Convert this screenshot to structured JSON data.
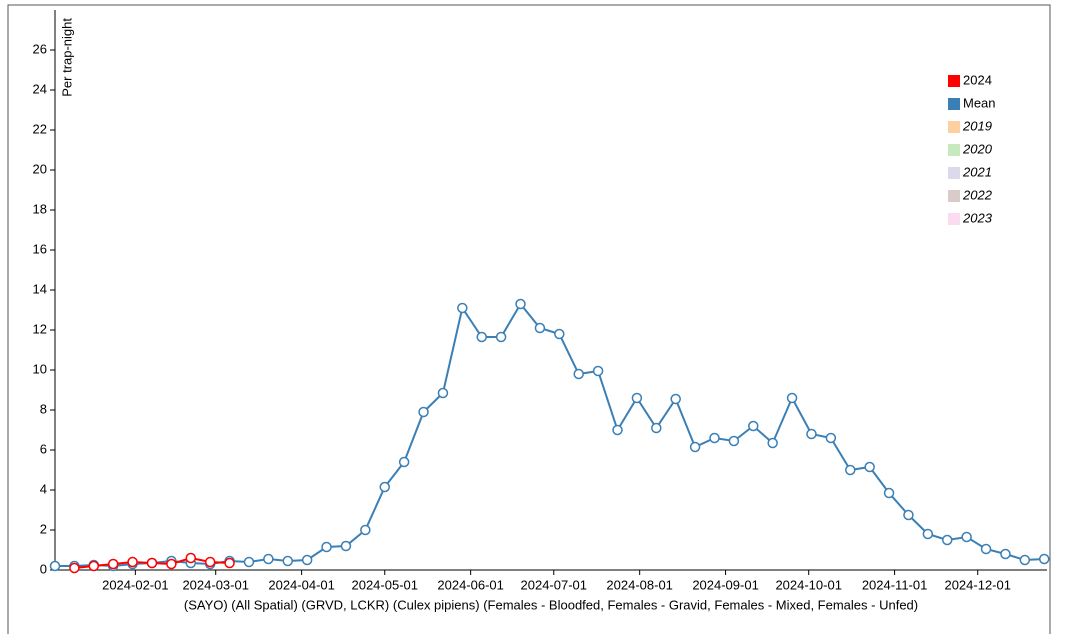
{
  "chart_data": {
    "type": "line",
    "y_label": "Per trap-night",
    "x_label": "(SAYO) (All Spatial) (GRVD, LCKR) (Culex pipiens) (Females - Bloodfed, Females - Gravid, Females - Mixed, Females - Unfed)",
    "x": [
      "2024-01-03",
      "2024-01-10",
      "2024-01-17",
      "2024-01-24",
      "2024-01-31",
      "2024-02-07",
      "2024-02-14",
      "2024-02-21",
      "2024-02-28",
      "2024-03-06",
      "2024-03-13",
      "2024-03-20",
      "2024-03-27",
      "2024-04-03",
      "2024-04-10",
      "2024-04-17",
      "2024-04-24",
      "2024-05-01",
      "2024-05-08",
      "2024-05-15",
      "2024-05-22",
      "2024-05-29",
      "2024-06-05",
      "2024-06-12",
      "2024-06-19",
      "2024-06-26",
      "2024-07-03",
      "2024-07-10",
      "2024-07-17",
      "2024-07-24",
      "2024-07-31",
      "2024-08-07",
      "2024-08-14",
      "2024-08-21",
      "2024-08-28",
      "2024-09-04",
      "2024-09-11",
      "2024-09-18",
      "2024-09-25",
      "2024-10-02",
      "2024-10-09",
      "2024-10-16",
      "2024-10-23",
      "2024-10-30",
      "2024-11-06",
      "2024-11-13",
      "2024-11-20",
      "2024-11-27",
      "2024-12-04",
      "2024-12-11",
      "2024-12-18",
      "2024-12-25"
    ],
    "series": [
      {
        "name": "2024",
        "color": "#ff0000",
        "values": [
          null,
          0.1,
          0.2,
          0.3,
          0.4,
          0.35,
          0.3,
          0.6,
          0.4,
          0.35,
          null,
          null,
          null,
          null,
          null,
          null,
          null,
          null,
          null,
          null,
          null,
          null,
          null,
          null,
          null,
          null,
          null,
          null,
          null,
          null,
          null,
          null,
          null,
          null,
          null,
          null,
          null,
          null,
          null,
          null,
          null,
          null,
          null,
          null,
          null,
          null,
          null,
          null,
          null,
          null,
          null,
          null
        ]
      },
      {
        "name": "Mean",
        "color": "#3a7fb5",
        "values": [
          0.2,
          0.2,
          0.25,
          0.2,
          0.3,
          0.35,
          0.45,
          0.35,
          0.3,
          0.45,
          0.4,
          0.55,
          0.45,
          0.5,
          1.15,
          1.2,
          2.0,
          4.15,
          5.4,
          7.9,
          8.85,
          13.1,
          11.65,
          11.65,
          13.3,
          12.1,
          11.8,
          9.8,
          9.95,
          7.0,
          8.6,
          7.1,
          8.55,
          6.15,
          6.6,
          6.45,
          7.2,
          6.35,
          8.6,
          6.8,
          6.6,
          5.0,
          5.15,
          3.85,
          2.75,
          1.8,
          1.5,
          1.65,
          1.05,
          0.8,
          0.5,
          0.55
        ]
      },
      {
        "name": "2019",
        "color": "#fdd0a2",
        "values": [
          null,
          null,
          null,
          null,
          null,
          null,
          null,
          null,
          null,
          null,
          null,
          null,
          null,
          null,
          null,
          null,
          null,
          null,
          null,
          null,
          null,
          null,
          null,
          null,
          null,
          null,
          null,
          null,
          null,
          null,
          null,
          null,
          null,
          null,
          null,
          null,
          null,
          null,
          null,
          null,
          null,
          null,
          null,
          null,
          null,
          null,
          null,
          null,
          null,
          null,
          null,
          null
        ]
      },
      {
        "name": "2020",
        "color": "#c7e9c0",
        "values": [
          null,
          null,
          null,
          null,
          null,
          null,
          null,
          null,
          null,
          null,
          null,
          null,
          null,
          null,
          null,
          null,
          null,
          null,
          null,
          null,
          null,
          null,
          null,
          null,
          null,
          null,
          null,
          null,
          null,
          null,
          null,
          null,
          null,
          null,
          null,
          null,
          null,
          null,
          null,
          null,
          null,
          null,
          null,
          null,
          null,
          null,
          null,
          null,
          null,
          null,
          null,
          null
        ]
      },
      {
        "name": "2021",
        "color": "#dadaeb",
        "values": [
          null,
          null,
          null,
          null,
          null,
          null,
          null,
          null,
          null,
          null,
          null,
          null,
          null,
          null,
          null,
          null,
          null,
          null,
          null,
          null,
          null,
          null,
          null,
          null,
          null,
          null,
          null,
          null,
          null,
          null,
          null,
          null,
          null,
          null,
          null,
          null,
          null,
          null,
          null,
          null,
          null,
          null,
          null,
          null,
          null,
          null,
          null,
          null,
          null,
          null,
          null,
          null
        ]
      },
      {
        "name": "2022",
        "color": "#d9ccc8",
        "values": [
          null,
          null,
          null,
          null,
          null,
          null,
          null,
          null,
          null,
          null,
          null,
          null,
          null,
          null,
          null,
          null,
          null,
          null,
          null,
          null,
          null,
          null,
          null,
          null,
          null,
          null,
          null,
          null,
          null,
          null,
          null,
          null,
          null,
          null,
          null,
          null,
          null,
          null,
          null,
          null,
          null,
          null,
          null,
          null,
          null,
          null,
          null,
          null,
          null,
          null,
          null,
          null
        ]
      },
      {
        "name": "2023",
        "color": "#fadcf0",
        "values": [
          null,
          null,
          null,
          null,
          null,
          null,
          null,
          null,
          null,
          null,
          null,
          null,
          null,
          null,
          null,
          null,
          null,
          null,
          null,
          null,
          null,
          null,
          null,
          null,
          null,
          null,
          null,
          null,
          null,
          null,
          null,
          null,
          null,
          null,
          null,
          null,
          null,
          null,
          null,
          null,
          null,
          null,
          null,
          null,
          null,
          null,
          null,
          null,
          null,
          null,
          null,
          null
        ]
      }
    ],
    "xlim": [
      "2024-01-03",
      "2024-12-26"
    ],
    "xticks": [
      "2024-02-01",
      "2024-03-01",
      "2024-04-01",
      "2024-05-01",
      "2024-06-01",
      "2024-07-01",
      "2024-08-01",
      "2024-09-01",
      "2024-10-01",
      "2024-11-01",
      "2024-12-01"
    ],
    "ylim": [
      0,
      28
    ],
    "yticks": [
      0,
      2,
      4,
      6,
      8,
      10,
      12,
      14,
      16,
      18,
      20,
      22,
      24,
      26
    ],
    "legend": "top-right"
  }
}
